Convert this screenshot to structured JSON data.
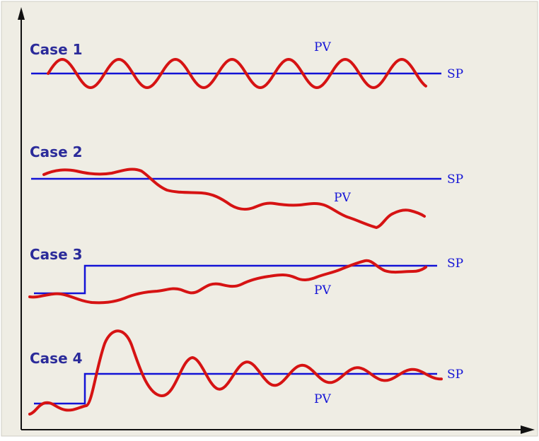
{
  "colors": {
    "background": "#efede4",
    "sp": "#1313d6",
    "pv": "#d61313",
    "axis": "#111111",
    "label": "#2b2b9a"
  },
  "cases": [
    {
      "title": "Case 1",
      "sp_label": "SP",
      "pv_label": "PV"
    },
    {
      "title": "Case 2",
      "sp_label": "SP",
      "pv_label": "PV"
    },
    {
      "title": "Case 3",
      "sp_label": "SP",
      "pv_label": "PV"
    },
    {
      "title": "Case 4",
      "sp_label": "SP",
      "pv_label": "PV"
    }
  ]
}
